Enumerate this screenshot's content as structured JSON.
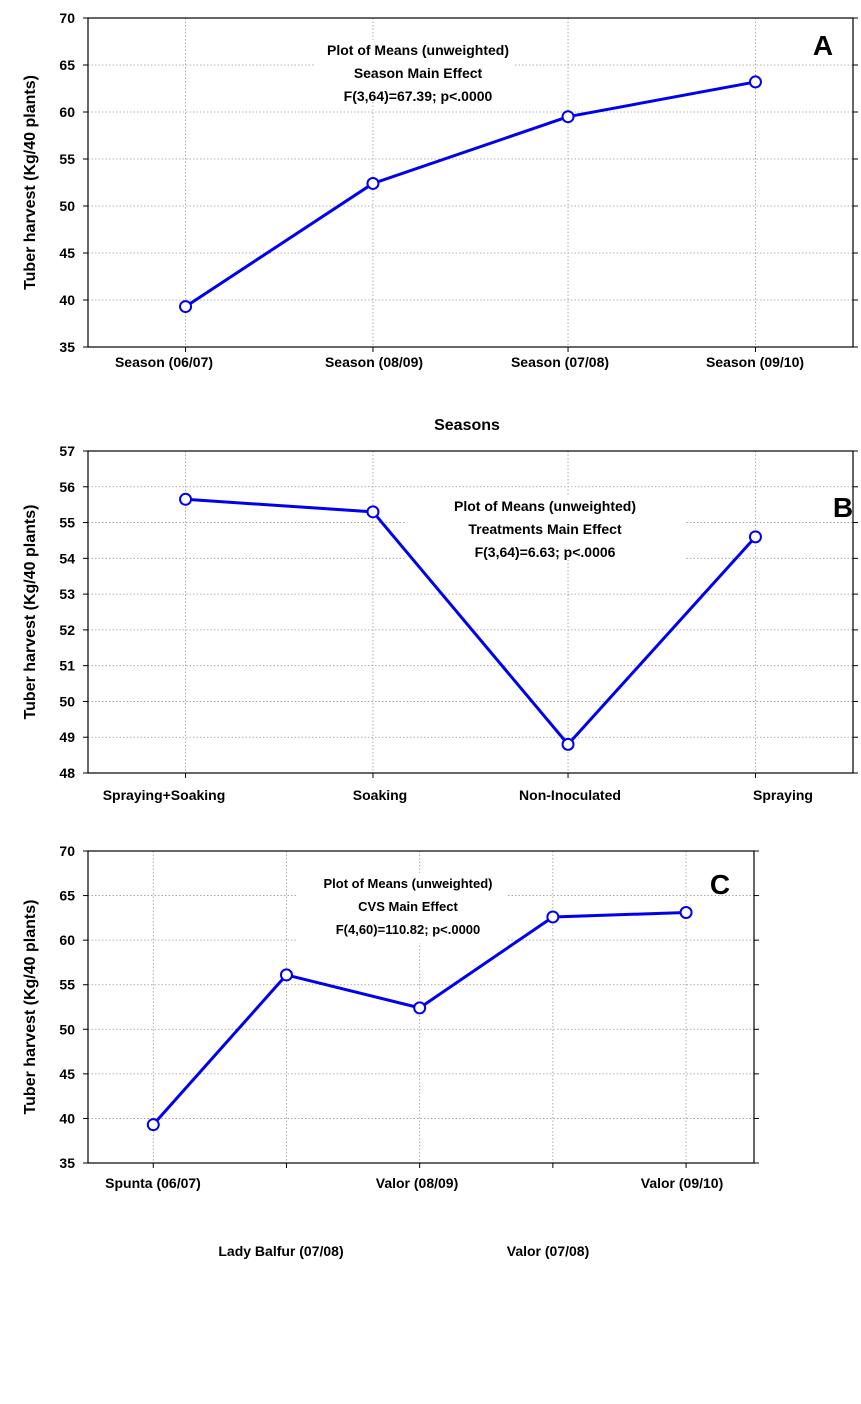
{
  "chart_data": [
    {
      "type": "line",
      "panel_label": "A",
      "title_lines": [
        "Plot of Means (unweighted)",
        "Season Main Effect",
        "F(3,64)=67.39; p<.0000"
      ],
      "categories": [
        "Season (06/07)",
        "Season (08/09)",
        "Season (07/08)",
        "Season (09/10)"
      ],
      "series": [
        {
          "values": [
            39.3,
            52.4,
            59.5,
            63.2
          ]
        }
      ],
      "xlabel": "Seasons",
      "ylabel": "Tuber harvest (Kg/40 plants)",
      "ylim": [
        35,
        70
      ],
      "yticks": [
        35,
        40,
        45,
        50,
        55,
        60,
        65,
        70
      ],
      "grid": true,
      "color": "#0000ee"
    },
    {
      "type": "line",
      "panel_label": "B",
      "title_lines": [
        "Plot of Means (unweighted)",
        "Treatments Main Effect",
        "F(3,64)=6.63; p<.0006"
      ],
      "categories": [
        "Spraying+Soaking",
        "Soaking",
        "Non-Inoculated",
        "Spraying"
      ],
      "series": [
        {
          "values": [
            55.65,
            55.3,
            48.8,
            54.6
          ]
        }
      ],
      "xlabel": "",
      "ylabel": "Tuber harvest (Kg/40 plants)",
      "ylim": [
        48,
        57
      ],
      "yticks": [
        48,
        49,
        50,
        51,
        52,
        53,
        54,
        55,
        56,
        57
      ],
      "grid": true,
      "color": "#0000ee"
    },
    {
      "type": "line",
      "panel_label": "C",
      "title_lines": [
        "Plot of Means (unweighted)",
        "CVS Main Effect",
        "F(4,60)=110.82; p<.0000"
      ],
      "categories": [
        "Spunta (06/07)",
        "Lady Balfur (07/08)",
        "Valor (08/09)",
        "Valor (07/08)",
        "Valor (09/10)"
      ],
      "series": [
        {
          "values": [
            39.3,
            56.1,
            52.4,
            62.6,
            63.1
          ]
        }
      ],
      "xlabel": "",
      "ylabel": "Tuber harvest (Kg/40 plants)",
      "ylim": [
        35,
        70
      ],
      "yticks": [
        35,
        40,
        45,
        50,
        55,
        60,
        65,
        70
      ],
      "grid": true,
      "color": "#0000ee"
    }
  ]
}
